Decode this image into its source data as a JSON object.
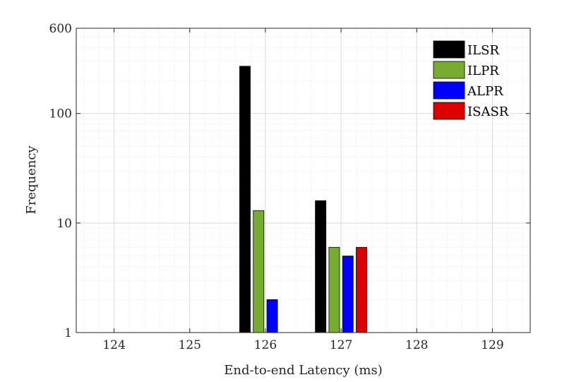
{
  "chart_data": {
    "type": "bar",
    "xlabel": "End-to-end Latency (ms)",
    "ylabel": "Frequency",
    "yscale": "log",
    "xlim": [
      123.5,
      129.5
    ],
    "ylim": [
      1,
      600
    ],
    "xticks": [
      124,
      125,
      126,
      127,
      128,
      129
    ],
    "yticks": [
      1,
      10,
      100,
      600
    ],
    "grid": "on (major and minor, dotted)",
    "legend_position": "top-right",
    "categories": [
      126,
      127
    ],
    "series": [
      {
        "name": "ILSR",
        "color": "#000000",
        "values": [
          270,
          16
        ]
      },
      {
        "name": "ILPR",
        "color": "#77AC30",
        "values": [
          13,
          6
        ]
      },
      {
        "name": "ALPR",
        "color": "#0000FF",
        "values": [
          2,
          5
        ]
      },
      {
        "name": "ISASR",
        "color": "#DD0000",
        "values": [
          1,
          6
        ]
      }
    ]
  }
}
